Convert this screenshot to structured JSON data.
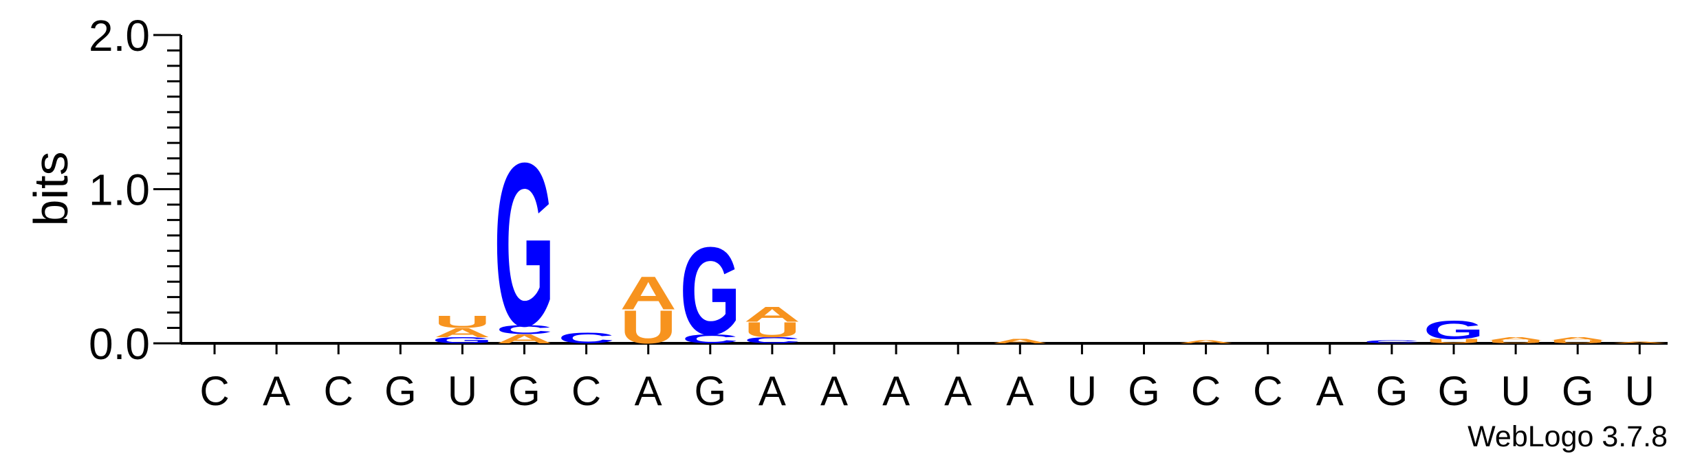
{
  "chart_data": {
    "type": "sequence-logo",
    "ylabel": "bits",
    "ylim": [
      0,
      2.0
    ],
    "y_ticks": [
      "0.0",
      "1.0",
      "2.0"
    ],
    "positions": [
      "C",
      "A",
      "C",
      "G",
      "U",
      "G",
      "C",
      "A",
      "G",
      "A",
      "A",
      "A",
      "A",
      "A",
      "U",
      "G",
      "C",
      "C",
      "A",
      "G",
      "G",
      "U",
      "G",
      "U"
    ],
    "base_colors": {
      "A": "#f7931e",
      "U": "#f7931e",
      "G": "#0000ff",
      "C": "#0000ff"
    },
    "stacks": [
      [],
      [],
      [],
      [],
      [
        {
          "base": "G",
          "bits": 0.04
        },
        {
          "base": "A",
          "bits": 0.06
        },
        {
          "base": "U",
          "bits": 0.08
        }
      ],
      [
        {
          "base": "A",
          "bits": 0.06
        },
        {
          "base": "C",
          "bits": 0.06
        },
        {
          "base": "G",
          "bits": 1.08
        }
      ],
      [
        {
          "base": "C",
          "bits": 0.07
        }
      ],
      [
        {
          "base": "U",
          "bits": 0.22
        },
        {
          "base": "A",
          "bits": 0.22
        }
      ],
      [
        {
          "base": "C",
          "bits": 0.06
        },
        {
          "base": "G",
          "bits": 0.58
        }
      ],
      [
        {
          "base": "C",
          "bits": 0.04
        },
        {
          "base": "U",
          "bits": 0.1
        },
        {
          "base": "A",
          "bits": 0.1
        }
      ],
      [],
      [],
      [],
      [
        {
          "base": "A",
          "bits": 0.03
        }
      ],
      [],
      [],
      [
        {
          "base": "A",
          "bits": 0.02
        }
      ],
      [],
      [],
      [
        {
          "base": "C",
          "bits": 0.02
        }
      ],
      [
        {
          "base": "U",
          "bits": 0.03
        },
        {
          "base": "G",
          "bits": 0.12
        }
      ],
      [
        {
          "base": "U",
          "bits": 0.02
        },
        {
          "base": "A",
          "bits": 0.02
        }
      ],
      [
        {
          "base": "U",
          "bits": 0.02
        },
        {
          "base": "A",
          "bits": 0.02
        }
      ],
      [
        {
          "base": "A",
          "bits": 0.01
        }
      ]
    ]
  },
  "footer": {
    "credit": "WebLogo 3.7.8"
  }
}
